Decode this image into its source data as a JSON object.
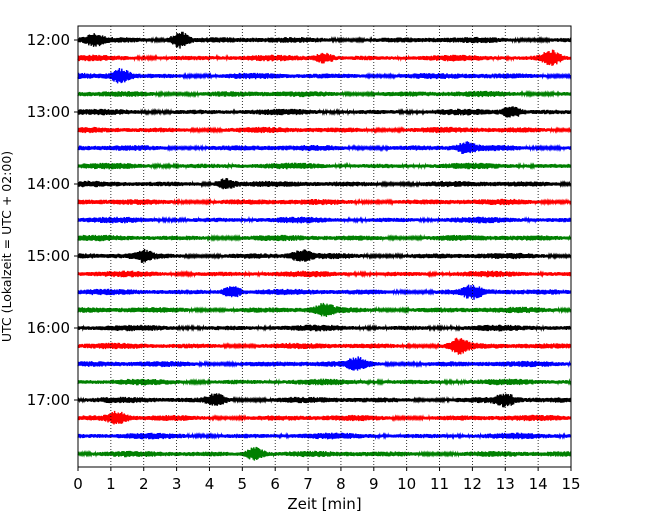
{
  "chart_data": {
    "type": "line",
    "subtype": "helicorder",
    "xlabel": "Zeit  [min]",
    "ylabel": "UTC (Lokalzeit = UTC + 02:00)",
    "xlim": [
      0,
      15
    ],
    "x_ticks": [
      "0",
      "1",
      "2",
      "3",
      "4",
      "5",
      "6",
      "7",
      "8",
      "9",
      "10",
      "11",
      "12",
      "13",
      "14",
      "15"
    ],
    "y_ticks": [
      "12:00",
      "13:00",
      "14:00",
      "15:00",
      "16:00",
      "17:00"
    ],
    "trace_interval_min": 15,
    "trace_start": "12:00",
    "trace_count": 24,
    "colors_cycle": [
      "#000000",
      "#ff0000",
      "#0000ff",
      "#008000"
    ],
    "vertical_grid": "dotted",
    "events": [
      {
        "trace": 0,
        "x": 3.1,
        "amp": 2.4
      },
      {
        "trace": 0,
        "x": 0.5,
        "amp": 1.5
      },
      {
        "trace": 1,
        "x": 14.4,
        "amp": 2.0
      },
      {
        "trace": 1,
        "x": 7.5,
        "amp": 1.4
      },
      {
        "trace": 2,
        "x": 1.3,
        "amp": 2.0
      },
      {
        "trace": 4,
        "x": 13.2,
        "amp": 1.6
      },
      {
        "trace": 6,
        "x": 11.8,
        "amp": 1.4
      },
      {
        "trace": 8,
        "x": 4.5,
        "amp": 1.6
      },
      {
        "trace": 12,
        "x": 6.8,
        "amp": 1.6
      },
      {
        "trace": 12,
        "x": 2.0,
        "amp": 1.3
      },
      {
        "trace": 14,
        "x": 4.7,
        "amp": 1.7
      },
      {
        "trace": 14,
        "x": 12.0,
        "amp": 1.6
      },
      {
        "trace": 15,
        "x": 7.5,
        "amp": 1.5
      },
      {
        "trace": 17,
        "x": 11.6,
        "amp": 2.0
      },
      {
        "trace": 18,
        "x": 8.5,
        "amp": 1.6
      },
      {
        "trace": 20,
        "x": 4.2,
        "amp": 1.6
      },
      {
        "trace": 20,
        "x": 13.0,
        "amp": 1.6
      },
      {
        "trace": 21,
        "x": 1.2,
        "amp": 1.6
      },
      {
        "trace": 23,
        "x": 5.4,
        "amp": 2.0
      }
    ]
  }
}
